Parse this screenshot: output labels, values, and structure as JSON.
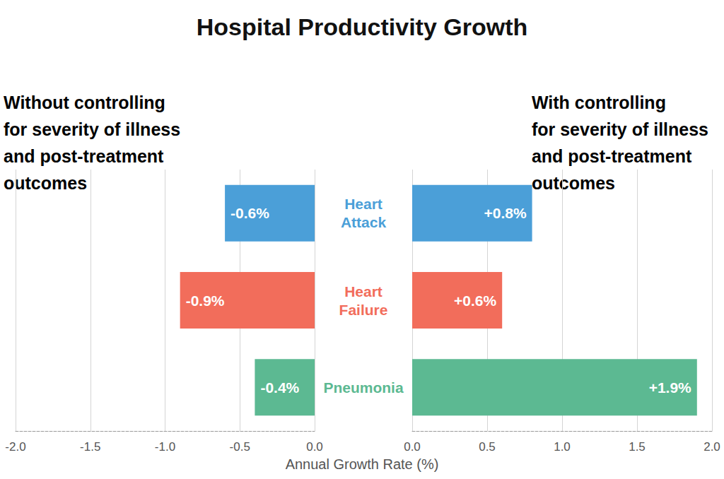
{
  "title": "Hospital Productivity Growth",
  "xlabel": "Annual Growth Rate (%)",
  "chart_data": [
    {
      "type": "bar",
      "orientation": "horizontal",
      "annotation": [
        "Without controlling",
        "for severity of illness",
        "and post-treatment",
        "outcomes"
      ],
      "categories": [
        "Heart Attack",
        "Heart Failure",
        "Pneumonia"
      ],
      "values": [
        -0.6,
        -0.9,
        -0.4
      ],
      "value_labels": [
        "-0.6%",
        "-0.9%",
        "-0.4%"
      ],
      "colors": [
        "#4b9fd8",
        "#f26d5b",
        "#5cb992"
      ],
      "xlim": [
        -2,
        0
      ],
      "xticks": [
        {
          "value": -2,
          "label": "-2.0"
        },
        {
          "value": -1.5,
          "label": "-1.5"
        },
        {
          "value": -1,
          "label": "-1.0"
        },
        {
          "value": -0.5,
          "label": "-0.5"
        },
        {
          "value": 0,
          "label": "0.0"
        }
      ],
      "grid": true,
      "data_labels": true,
      "tick_labels": true
    },
    {
      "type": "bar",
      "orientation": "horizontal",
      "annotation": [
        "With controlling",
        "for severity of illness",
        "and post-treatment",
        "outcomes"
      ],
      "categories": [
        "Heart Attack",
        "Heart Failure",
        "Pneumonia"
      ],
      "values": [
        0.8,
        0.6,
        1.9
      ],
      "value_labels": [
        "+0.8%",
        "+0.6%",
        "+1.9%"
      ],
      "colors": [
        "#4b9fd8",
        "#f26d5b",
        "#5cb992"
      ],
      "xlim": [
        0,
        2
      ],
      "xticks": [
        {
          "value": 0,
          "label": "0.0"
        },
        {
          "value": 0.5,
          "label": "0.5"
        },
        {
          "value": 1,
          "label": "1.0"
        },
        {
          "value": 1.5,
          "label": "1.5"
        },
        {
          "value": 2,
          "label": "2.0"
        }
      ],
      "grid": true,
      "data_labels": true,
      "tick_labels": "x"
    }
  ]
}
